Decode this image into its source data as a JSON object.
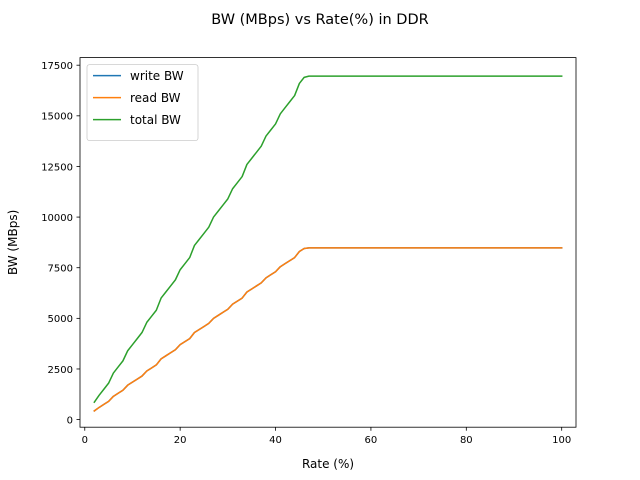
{
  "chart_data": {
    "type": "line",
    "title": "BW (MBps) vs Rate(%) in DDR",
    "xlabel": "Rate (%)",
    "ylabel": "BW (MBps)",
    "xlim": [
      -1.0,
      103.0
    ],
    "ylim": [
      -375,
      17875
    ],
    "xticks": [
      0,
      20,
      40,
      60,
      80,
      100
    ],
    "yticks": [
      0,
      2500,
      5000,
      7500,
      10000,
      12500,
      15000,
      17500
    ],
    "grid": false,
    "legend_position": "top-left",
    "x": [
      2,
      3,
      4,
      5,
      6,
      7,
      8,
      9,
      10,
      11,
      12,
      13,
      14,
      15,
      16,
      17,
      18,
      19,
      20,
      21,
      22,
      23,
      24,
      25,
      26,
      27,
      28,
      29,
      30,
      31,
      32,
      33,
      34,
      35,
      36,
      37,
      38,
      39,
      40,
      41,
      42,
      43,
      44,
      45,
      46,
      47,
      48,
      49,
      50,
      52,
      55,
      60,
      65,
      70,
      75,
      80,
      85,
      90,
      95,
      100
    ],
    "series": [
      {
        "name": "write BW",
        "color": "#1f77b4",
        "values": [
          430,
          600,
          750,
          900,
          1150,
          1300,
          1450,
          1700,
          1850,
          2000,
          2150,
          2400,
          2550,
          2700,
          3000,
          3150,
          3300,
          3450,
          3700,
          3850,
          4000,
          4300,
          4450,
          4600,
          4750,
          5000,
          5150,
          5300,
          5450,
          5700,
          5850,
          6000,
          6300,
          6450,
          6600,
          6750,
          7000,
          7150,
          7300,
          7550,
          7700,
          7850,
          8000,
          8300,
          8450,
          8480,
          8480,
          8480,
          8480,
          8480,
          8480,
          8480,
          8480,
          8480,
          8480,
          8480,
          8480,
          8480,
          8480,
          8480
        ]
      },
      {
        "name": "read BW",
        "color": "#ff7f0e",
        "values": [
          430,
          600,
          750,
          900,
          1150,
          1300,
          1450,
          1700,
          1850,
          2000,
          2150,
          2400,
          2550,
          2700,
          3000,
          3150,
          3300,
          3450,
          3700,
          3850,
          4000,
          4300,
          4450,
          4600,
          4750,
          5000,
          5150,
          5300,
          5450,
          5700,
          5850,
          6000,
          6300,
          6450,
          6600,
          6750,
          7000,
          7150,
          7300,
          7550,
          7700,
          7850,
          8000,
          8300,
          8450,
          8480,
          8480,
          8480,
          8480,
          8480,
          8480,
          8480,
          8480,
          8480,
          8480,
          8480,
          8480,
          8480,
          8480,
          8480
        ]
      },
      {
        "name": "total BW",
        "color": "#2ca02c",
        "values": [
          860,
          1200,
          1500,
          1800,
          2300,
          2600,
          2900,
          3400,
          3700,
          4000,
          4300,
          4800,
          5100,
          5400,
          6000,
          6300,
          6600,
          6900,
          7400,
          7700,
          8000,
          8600,
          8900,
          9200,
          9500,
          10000,
          10300,
          10600,
          10900,
          11400,
          11700,
          12000,
          12600,
          12900,
          13200,
          13500,
          14000,
          14300,
          14600,
          15100,
          15400,
          15700,
          16000,
          16600,
          16900,
          16960,
          16960,
          16960,
          16960,
          16960,
          16960,
          16960,
          16960,
          16960,
          16960,
          16960,
          16960,
          16960,
          16960,
          16960
        ]
      }
    ]
  }
}
